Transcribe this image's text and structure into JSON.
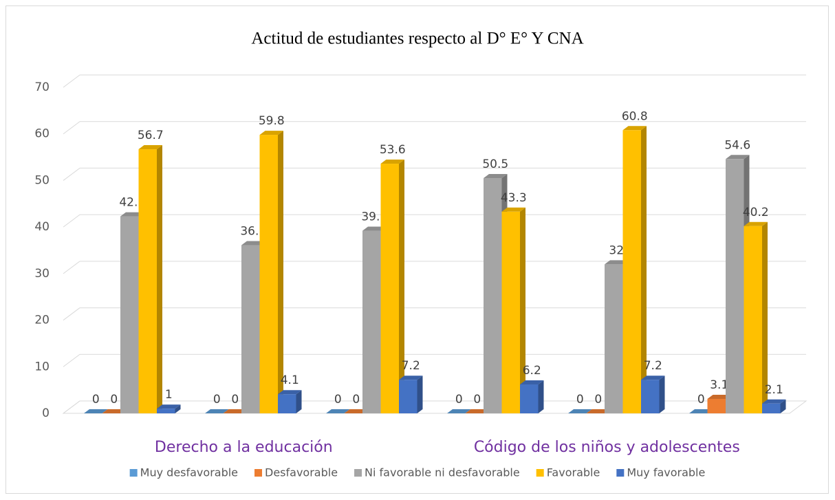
{
  "chart_data": {
    "type": "bar3d",
    "title": "Actitud de estudiantes respecto al D° E° Y CNA",
    "category_groups": [
      "Derecho a la educación",
      "Código de los niños y adolescentes"
    ],
    "categories": [
      null,
      null,
      null,
      null,
      null,
      null
    ],
    "series": [
      {
        "name": "Muy desfavorable",
        "color": "#5b9bd5",
        "values": [
          0,
          0,
          0,
          0,
          0,
          0
        ]
      },
      {
        "name": "Desfavorable",
        "color": "#ed7d31",
        "values": [
          0,
          0,
          0,
          0,
          0,
          3.1
        ]
      },
      {
        "name": "Ni favorable ni desfavorable",
        "color": "#a5a5a5",
        "values": [
          42.3,
          36.1,
          39.2,
          50.5,
          32,
          54.6
        ]
      },
      {
        "name": "Favorable",
        "color": "#ffc000",
        "values": [
          56.7,
          59.8,
          53.6,
          43.3,
          60.8,
          40.2
        ]
      },
      {
        "name": "Muy favorable",
        "color": "#4472c4",
        "values": [
          1,
          4.1,
          7.2,
          6.2,
          7.2,
          2.1
        ]
      }
    ],
    "ylim": [
      0,
      70
    ],
    "yticks": [
      0,
      10,
      20,
      30,
      40,
      50,
      60,
      70
    ],
    "grid": true,
    "legend": "bottom"
  }
}
